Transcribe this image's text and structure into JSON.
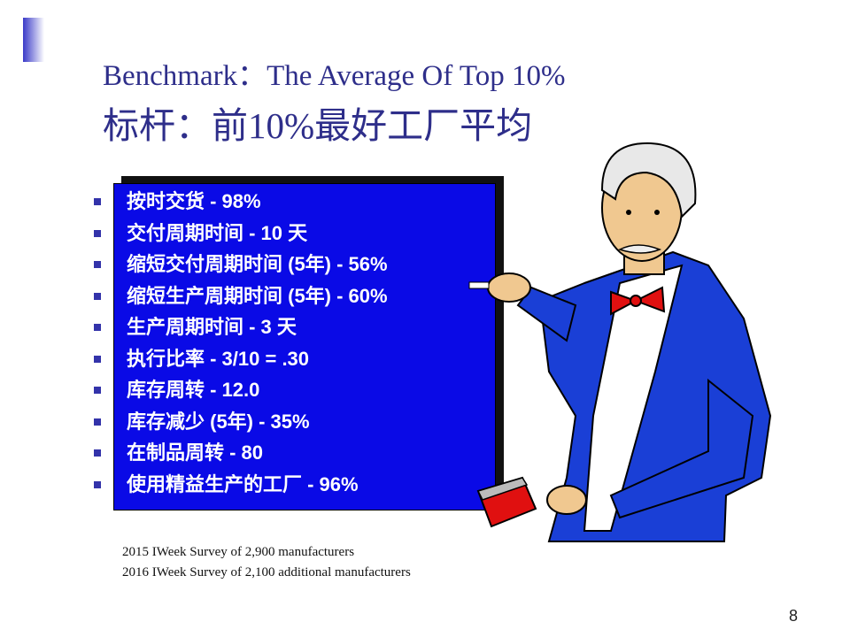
{
  "slide": {
    "title_en": "Benchmark：The Average Of Top 10%",
    "title_zh": "标杆：前10%最好工厂平均",
    "items": [
      {
        "label": "按时交货 - 98%"
      },
      {
        "label": "交付周期时间 - 10 天"
      },
      {
        "label": "缩短交付周期时间 (5年) - 56%"
      },
      {
        "label": "缩短生产周期时间 (5年) - 60%"
      },
      {
        "label": "生产周期时间 - 3 天"
      },
      {
        "label": "执行比率  - 3/10 = .30"
      },
      {
        "label": "库存周转 - 12.0"
      },
      {
        "label": "库存减少 (5年) - 35%"
      },
      {
        "label": "在制品周转 - 80"
      },
      {
        "label": "使用精益生产的工厂 - 96%"
      }
    ],
    "footnotes": [
      "2015 IWeek Survey of 2,900 manufacturers",
      "2016 IWeek Survey of 2,100 additional manufacturers"
    ],
    "page_number": "8",
    "colors": {
      "board": "#0a0ae6",
      "title": "#2e2e8a",
      "suit": "#1a3fd6",
      "bow_tie": "#e01010"
    },
    "illustration": "teacher-with-chalk-and-eraser"
  }
}
